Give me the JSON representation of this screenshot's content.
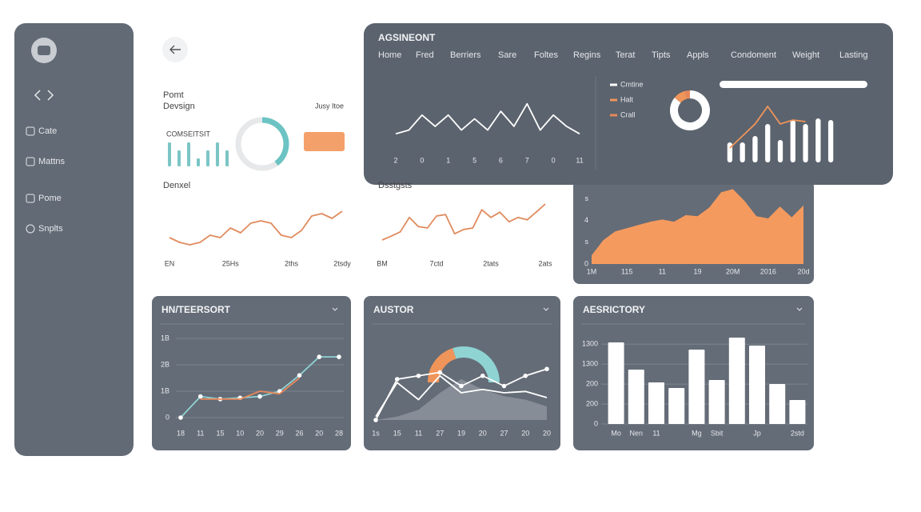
{
  "sidebar": {
    "items": [
      "Cate",
      "Mattns",
      "Pome",
      "Snplts"
    ]
  },
  "page": {
    "title": "Pomt",
    "subtitle": "Devsign",
    "date": "Jusy Itoe"
  },
  "header": {
    "title": "AGSINEONT",
    "nav": [
      "Home",
      "Fred",
      "Berriers",
      "Sare",
      "Foltes",
      "Regins",
      "Terat",
      "Tipts",
      "Appls",
      "Condoment",
      "Weight",
      "Lasting"
    ]
  },
  "chart_data": [
    {
      "type": "mini",
      "title": "COMSEITSIT",
      "values": [
        3,
        2,
        3,
        1,
        2,
        3,
        2
      ],
      "ylim": [
        0,
        3
      ],
      "color": "#7cc5c5",
      "gauge": {
        "value": 40,
        "lim": [
          0,
          100
        ],
        "color": "#6cc3c3"
      }
    },
    {
      "type": "line",
      "title": "Denxel",
      "categories": [
        "EN",
        null,
        null,
        null,
        null,
        null,
        "25Hs",
        null,
        null,
        null,
        null,
        null,
        "2ths",
        null,
        null,
        null,
        null,
        "2tsdy"
      ],
      "series": [
        {
          "color": "#e08b5e",
          "values": [
            3,
            2,
            1.5,
            2,
            3.5,
            3,
            5,
            4,
            6,
            6.5,
            6,
            3.5,
            3,
            4.5,
            7.5,
            8,
            7,
            8.5
          ]
        }
      ],
      "ylim": [
        0,
        10
      ]
    },
    {
      "type": "line",
      "title": "Dsstgsts",
      "categories": [
        "BM",
        null,
        null,
        null,
        null,
        null,
        "7ctd",
        null,
        null,
        null,
        null,
        null,
        "2tats",
        null,
        null,
        null,
        null,
        null,
        "2ats"
      ],
      "series": [
        {
          "color": "#e08b5e",
          "values": [
            2.5,
            3.3,
            4.2,
            7.2,
            5.3,
            5,
            7.5,
            7.8,
            3.8,
            4.7,
            5,
            8.8,
            7.2,
            8.3,
            6.3,
            7.2,
            6.7,
            8.3,
            10
          ]
        }
      ],
      "ylim": [
        0,
        10
      ]
    },
    {
      "type": "line",
      "categories": [
        "2",
        null,
        "0",
        null,
        "1",
        null,
        "5",
        null,
        "6",
        null,
        "7",
        null,
        "0",
        null,
        "11"
      ],
      "series": [
        {
          "color": "#ffffff",
          "values": [
            1,
            2,
            6,
            3,
            6,
            2,
            5,
            2,
            7,
            3,
            9,
            2,
            6,
            3,
            1
          ]
        }
      ],
      "ylim": [
        0,
        10
      ]
    },
    {
      "type": "pie",
      "categories": [
        "Cmtine",
        "Halt",
        "Crall"
      ],
      "values": [
        86,
        10,
        4
      ],
      "colors": [
        "#ffffff",
        "#f0955a",
        "#e8885a"
      ]
    },
    {
      "type": "bar",
      "values": [
        2.5,
        2.5,
        3.3,
        4.8,
        2.8,
        5.3,
        4.8,
        5.5,
        5.3
      ],
      "color": "#ffffff",
      "ylim": [
        0,
        7
      ],
      "line": {
        "color": "#f0955a",
        "values": [
          1.8,
          3.3,
          4.8,
          7,
          4.8,
          5.3,
          5.1,
          null,
          null
        ]
      }
    },
    {
      "type": "area",
      "categories": [
        "1M",
        null,
        null,
        "115",
        null,
        null,
        "11",
        null,
        null,
        "19",
        null,
        null,
        "20M",
        null,
        null,
        "2016",
        null,
        null,
        "20d"
      ],
      "values": [
        0.8,
        2.2,
        3.0,
        3.3,
        3.6,
        3.9,
        4.1,
        3.9,
        4.5,
        4.4,
        5.2,
        6.6,
        6.9,
        5.8,
        4.4,
        4.2,
        5.3,
        4.3,
        5.4
      ],
      "color": "#f59a5e",
      "ylim": [
        0,
        7
      ],
      "yticks": [
        {
          "value": 6,
          "label": "s"
        },
        4,
        {
          "value": 2,
          "label": "s"
        },
        0
      ]
    },
    {
      "type": "line",
      "title": "HN/TEERSORT",
      "categories": [
        "18",
        "11",
        "15",
        "10",
        "20",
        "29",
        "26",
        "20",
        "28"
      ],
      "series": [
        {
          "color": "#8fd3d3",
          "values": [
            0,
            8,
            7,
            7.5,
            8,
            10,
            16,
            23,
            23
          ],
          "markers": true
        },
        {
          "color": "#e8885a",
          "values": [
            null,
            7,
            7,
            7,
            10,
            9,
            15,
            null,
            null
          ]
        }
      ],
      "ylim": [
        0,
        30
      ],
      "yticks": [
        {
          "value": 30,
          "label": "1B"
        },
        {
          "value": 20,
          "label": "2B"
        },
        {
          "value": 10,
          "label": "1B"
        },
        0
      ],
      "grid": true
    },
    {
      "type": "mixed",
      "title": "AUSTOR",
      "categories": [
        "1s",
        "15",
        "11",
        "27",
        "19",
        "20",
        "27",
        "20",
        "20"
      ],
      "area": {
        "color": "#8d939c",
        "values": [
          0,
          0.5,
          1.5,
          4,
          6,
          4.5,
          3.5,
          3,
          2
        ]
      },
      "series": [
        {
          "color": "#ffffff",
          "values": [
            0,
            6,
            6.5,
            7,
            5,
            6.5,
            5,
            6.5,
            7.5
          ],
          "markers": true
        },
        {
          "color": "#ffffff",
          "values": [
            0.5,
            5.5,
            3,
            6.5,
            4,
            4.5,
            4,
            4.2,
            3.3
          ]
        }
      ],
      "ylim": [
        0,
        10
      ],
      "gauge": {
        "values": [
          40,
          60
        ],
        "colors": [
          "#f0955a",
          "#8fd3d3"
        ]
      }
    },
    {
      "type": "bar",
      "title": "AESRICTORY",
      "categories": [
        "Mo",
        "Nen",
        "11",
        null,
        "Mg",
        "Sbit",
        null,
        "Jp",
        null,
        "2std"
      ],
      "values": [
        1228,
        818,
        626,
        542,
        1120,
        662,
        1300,
        1180,
        602,
        361
      ],
      "color": "#ffffff",
      "ylim": [
        0,
        1300
      ],
      "yticks": [
        {
          "value": 1200,
          "label": "1300"
        },
        {
          "value": 900,
          "label": "1300"
        },
        {
          "value": 600,
          "label": "200"
        },
        {
          "value": 300,
          "label": "200"
        },
        0
      ],
      "grid": true
    }
  ]
}
